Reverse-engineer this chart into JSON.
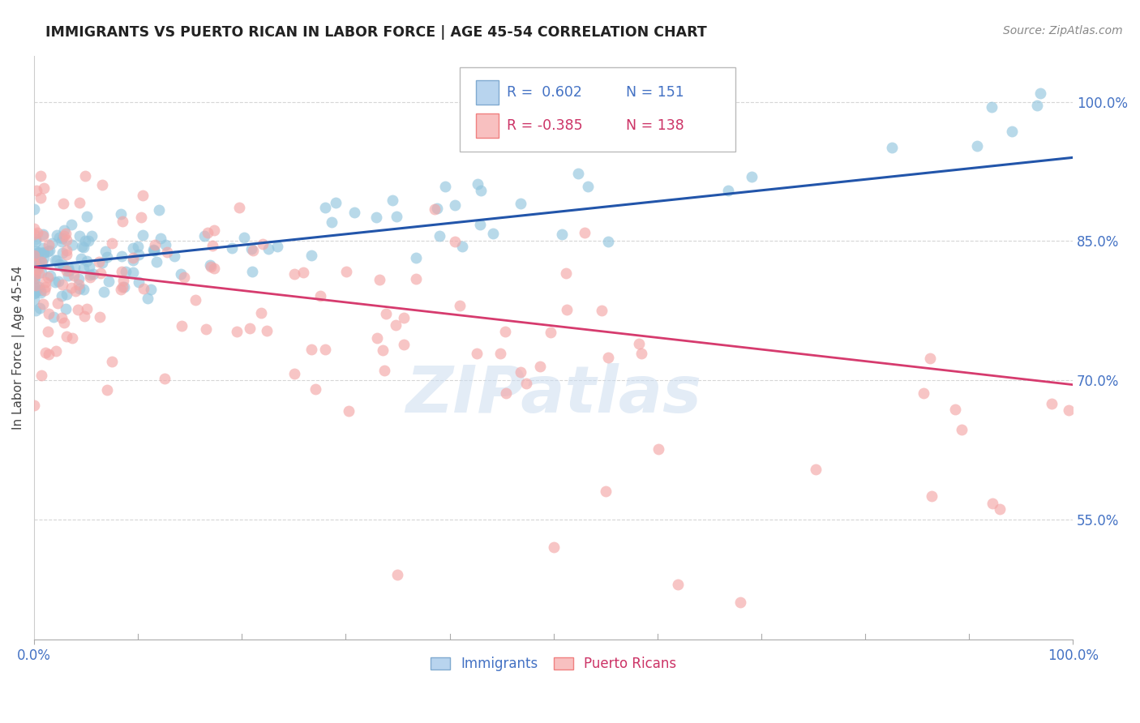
{
  "title": "IMMIGRANTS VS PUERTO RICAN IN LABOR FORCE | AGE 45-54 CORRELATION CHART",
  "source": "Source: ZipAtlas.com",
  "ylabel": "In Labor Force | Age 45-54",
  "xlim": [
    0.0,
    1.0
  ],
  "ylim": [
    0.42,
    1.05
  ],
  "yticks": [
    0.55,
    0.7,
    0.85,
    1.0
  ],
  "ytick_labels": [
    "55.0%",
    "70.0%",
    "85.0%",
    "100.0%"
  ],
  "xticks": [
    0.0,
    1.0
  ],
  "xtick_labels": [
    "0.0%",
    "100.0%"
  ],
  "watermark": "ZIPatlas",
  "blue_color": "#92c5de",
  "pink_color": "#f4a6a6",
  "blue_line_color": "#2255aa",
  "pink_line_color": "#d63b6e",
  "title_color": "#222222",
  "tick_label_color": "#4472c4",
  "background_color": "#ffffff",
  "grid_color": "#cccccc",
  "blue_trend_x": [
    0.0,
    1.0
  ],
  "blue_trend_y": [
    0.822,
    0.94
  ],
  "pink_trend_x": [
    0.0,
    1.0
  ],
  "pink_trend_y": [
    0.822,
    0.695
  ]
}
